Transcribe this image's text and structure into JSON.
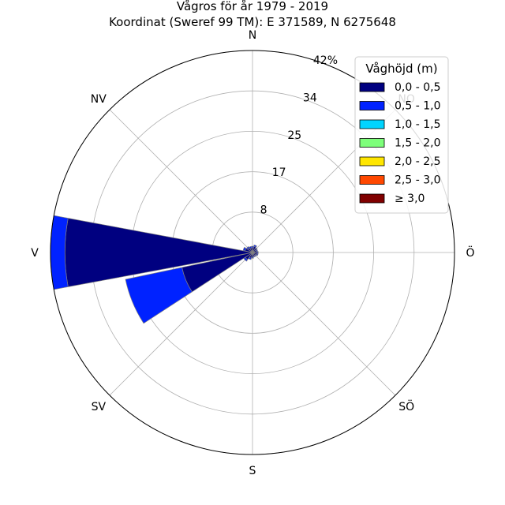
{
  "chart_data": {
    "type": "windrose",
    "title": "Vågros för år 1979 - 2019",
    "subtitle": "Koordinat (Sweref 99 TM): E 371589, N 6275648",
    "directions": [
      "N",
      "NO",
      "Ö",
      "SÖ",
      "S",
      "SV",
      "V",
      "NV"
    ],
    "radial_ticks": [
      "8",
      "17",
      "25",
      "34",
      "42%"
    ],
    "radial_tick_values": [
      8.4,
      16.8,
      25.2,
      33.6,
      42.0
    ],
    "rmax": 42.0,
    "sector_count": 16,
    "legend": {
      "title": "Våghöjd (m)",
      "placement": "top-right",
      "entries": [
        {
          "label": "0,0 - 0,5",
          "color": "#000080"
        },
        {
          "label": "0,5 - 1,0",
          "color": "#0022ff"
        },
        {
          "label": "1,0 - 1,5",
          "color": "#00d4ff"
        },
        {
          "label": "1,5 - 2,0",
          "color": "#7dff7a"
        },
        {
          "label": "2,0 - 2,5",
          "color": "#ffe600"
        },
        {
          "label": "2,5 - 3,0",
          "color": "#ff4800"
        },
        {
          "label": "≥ 3,0",
          "color": "#800000"
        }
      ]
    },
    "sectors": [
      {
        "dir_deg": 0,
        "cumulative": [
          1.0,
          1.3
        ]
      },
      {
        "dir_deg": 22.5,
        "cumulative": [
          1.3,
          1.6
        ]
      },
      {
        "dir_deg": 45,
        "cumulative": [
          1.0,
          1.2
        ]
      },
      {
        "dir_deg": 67.5,
        "cumulative": [
          0.9,
          1.1
        ]
      },
      {
        "dir_deg": 90,
        "cumulative": [
          1.0,
          1.2
        ]
      },
      {
        "dir_deg": 112.5,
        "cumulative": [
          1.0,
          1.2
        ]
      },
      {
        "dir_deg": 135,
        "cumulative": [
          0.8,
          1.0
        ]
      },
      {
        "dir_deg": 157.5,
        "cumulative": [
          0.8,
          1.0
        ]
      },
      {
        "dir_deg": 180,
        "cumulative": [
          1.0,
          1.2
        ]
      },
      {
        "dir_deg": 202.5,
        "cumulative": [
          1.2,
          1.5
        ]
      },
      {
        "dir_deg": 225,
        "cumulative": [
          1.8,
          2.2
        ]
      },
      {
        "dir_deg": 247.5,
        "cumulative": [
          15.0,
          27.0
        ]
      },
      {
        "dir_deg": 270,
        "cumulative": [
          39.0,
          42.0
        ]
      },
      {
        "dir_deg": 292.5,
        "cumulative": [
          1.6,
          2.0
        ]
      },
      {
        "dir_deg": 315,
        "cumulative": [
          1.2,
          1.5
        ]
      },
      {
        "dir_deg": 337.5,
        "cumulative": [
          1.0,
          1.3
        ]
      }
    ]
  }
}
